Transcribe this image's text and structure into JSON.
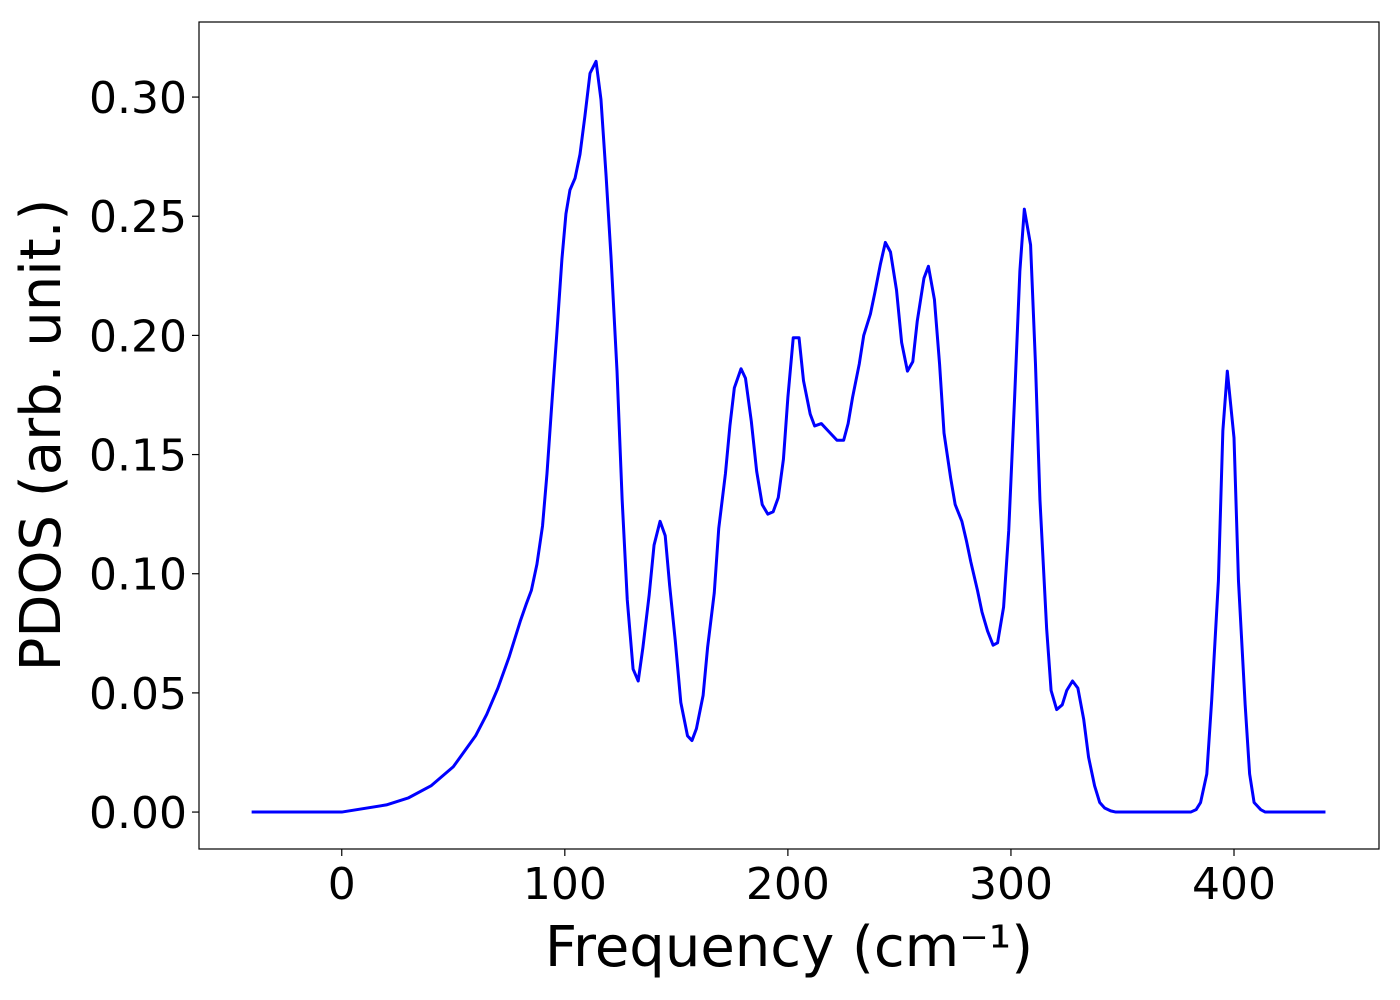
{
  "chart_data": {
    "type": "line",
    "x_label": "Frequency (cm⁻¹)",
    "y_label": "PDOS (arb. unit.)",
    "xlim": [
      -64,
      465
    ],
    "ylim": [
      -0.0155,
      0.3315
    ],
    "xticks": [
      0,
      100,
      200,
      300,
      400
    ],
    "yticks": [
      {
        "value": 0,
        "label": "0.00"
      },
      {
        "value": 0.05,
        "label": "0.05"
      },
      {
        "value": 0.1,
        "label": "0.10"
      },
      {
        "value": 0.15,
        "label": "0.15"
      },
      {
        "value": 0.2,
        "label": "0.20"
      },
      {
        "value": 0.25,
        "label": "0.25"
      },
      {
        "value": 0.3,
        "label": "0.30"
      }
    ],
    "series": [
      {
        "color": "#0000ff",
        "x": [
          -40.4,
          0,
          20,
          30,
          40,
          50,
          60,
          65,
          70,
          75,
          80,
          82.6,
          85,
          87.5,
          90,
          92,
          94,
          96.5,
          98.7,
          100.5,
          102.3,
          104.6,
          106.8,
          109,
          111.3,
          114,
          116.2,
          118.5,
          120.7,
          123.4,
          125.7,
          128,
          130.6,
          132.9,
          135,
          137.8,
          140,
          142.7,
          145,
          147,
          149.5,
          152,
          155,
          157,
          159,
          162,
          164,
          167,
          169,
          172,
          174,
          176,
          179,
          181,
          183.6,
          186,
          188.5,
          191,
          193.4,
          195.7,
          198,
          200,
          202.4,
          205,
          207,
          210,
          212,
          215,
          217,
          220,
          222,
          225,
          227,
          229,
          232,
          234,
          237,
          239,
          241.5,
          243.7,
          246,
          248.7,
          251,
          253.6,
          256,
          258,
          261,
          263,
          265.7,
          268,
          270,
          273,
          275,
          278,
          280,
          282,
          285,
          287,
          289.5,
          292,
          294,
          296.7,
          299,
          301.6,
          304,
          306,
          308.8,
          311,
          313,
          316,
          318,
          320.5,
          323,
          325,
          327.6,
          330,
          332.6,
          334.8,
          337.5,
          339.8,
          342,
          344.7,
          347,
          380.6,
          383,
          385,
          387.8,
          390,
          393,
          395,
          397,
          400,
          402,
          405,
          407,
          409,
          412,
          414,
          441
        ],
        "values": [
          0,
          0,
          0.003,
          0.006,
          0.011,
          0.019,
          0.032,
          0.041,
          0.052,
          0.065,
          0.08,
          0.087,
          0.093,
          0.104,
          0.12,
          0.142,
          0.169,
          0.202,
          0.232,
          0.251,
          0.261,
          0.266,
          0.276,
          0.292,
          0.31,
          0.315,
          0.299,
          0.267,
          0.233,
          0.185,
          0.131,
          0.089,
          0.06,
          0.055,
          0.069,
          0.091,
          0.112,
          0.122,
          0.116,
          0.095,
          0.072,
          0.046,
          0.032,
          0.03,
          0.035,
          0.049,
          0.069,
          0.092,
          0.119,
          0.142,
          0.162,
          0.178,
          0.186,
          0.182,
          0.164,
          0.143,
          0.129,
          0.125,
          0.126,
          0.132,
          0.148,
          0.174,
          0.199,
          0.199,
          0.181,
          0.167,
          0.162,
          0.163,
          0.161,
          0.158,
          0.156,
          0.156,
          0.163,
          0.174,
          0.188,
          0.2,
          0.209,
          0.218,
          0.23,
          0.239,
          0.235,
          0.219,
          0.197,
          0.185,
          0.189,
          0.206,
          0.224,
          0.229,
          0.215,
          0.188,
          0.159,
          0.14,
          0.129,
          0.122,
          0.114,
          0.105,
          0.093,
          0.084,
          0.076,
          0.07,
          0.071,
          0.086,
          0.118,
          0.173,
          0.227,
          0.253,
          0.238,
          0.188,
          0.131,
          0.077,
          0.051,
          0.043,
          0.045,
          0.051,
          0.055,
          0.052,
          0.039,
          0.023,
          0.011,
          0.004,
          0.0017,
          0.0005,
          0,
          0,
          0.001,
          0.004,
          0.016,
          0.047,
          0.097,
          0.16,
          0.185,
          0.157,
          0.097,
          0.045,
          0.016,
          0.004,
          0.001,
          0,
          0
        ]
      }
    ]
  }
}
